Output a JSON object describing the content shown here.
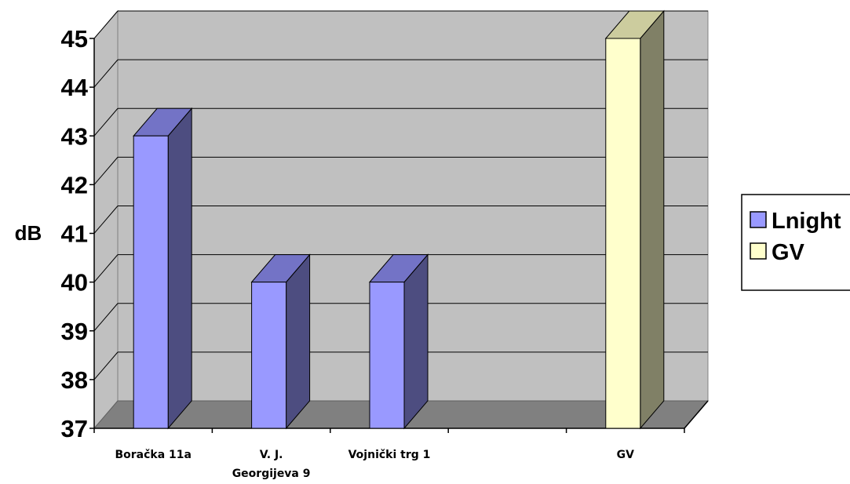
{
  "chart_data": {
    "type": "bar",
    "title": "",
    "xlabel": "",
    "ylabel": "dB",
    "ylim": [
      37,
      45
    ],
    "yticks": [
      "37",
      "38",
      "39",
      "40",
      "41",
      "42",
      "43",
      "44",
      "45"
    ],
    "categories": [
      "Boračka 11a",
      "V. J.\nGeorgijeva 9",
      "Vojnički trg 1",
      "",
      "GV"
    ],
    "series": [
      {
        "name": "Lnight",
        "values": [
          43,
          40,
          40,
          null,
          null
        ],
        "color": "#9999ff",
        "side_color": "#4d4d80",
        "top_color": "#7373c6"
      },
      {
        "name": "GV",
        "values": [
          null,
          null,
          null,
          null,
          45
        ],
        "color": "#ffffcc",
        "side_color": "#808066",
        "top_color": "#cccc9e"
      }
    ],
    "grid": true,
    "legend": "right",
    "style": "3d"
  }
}
